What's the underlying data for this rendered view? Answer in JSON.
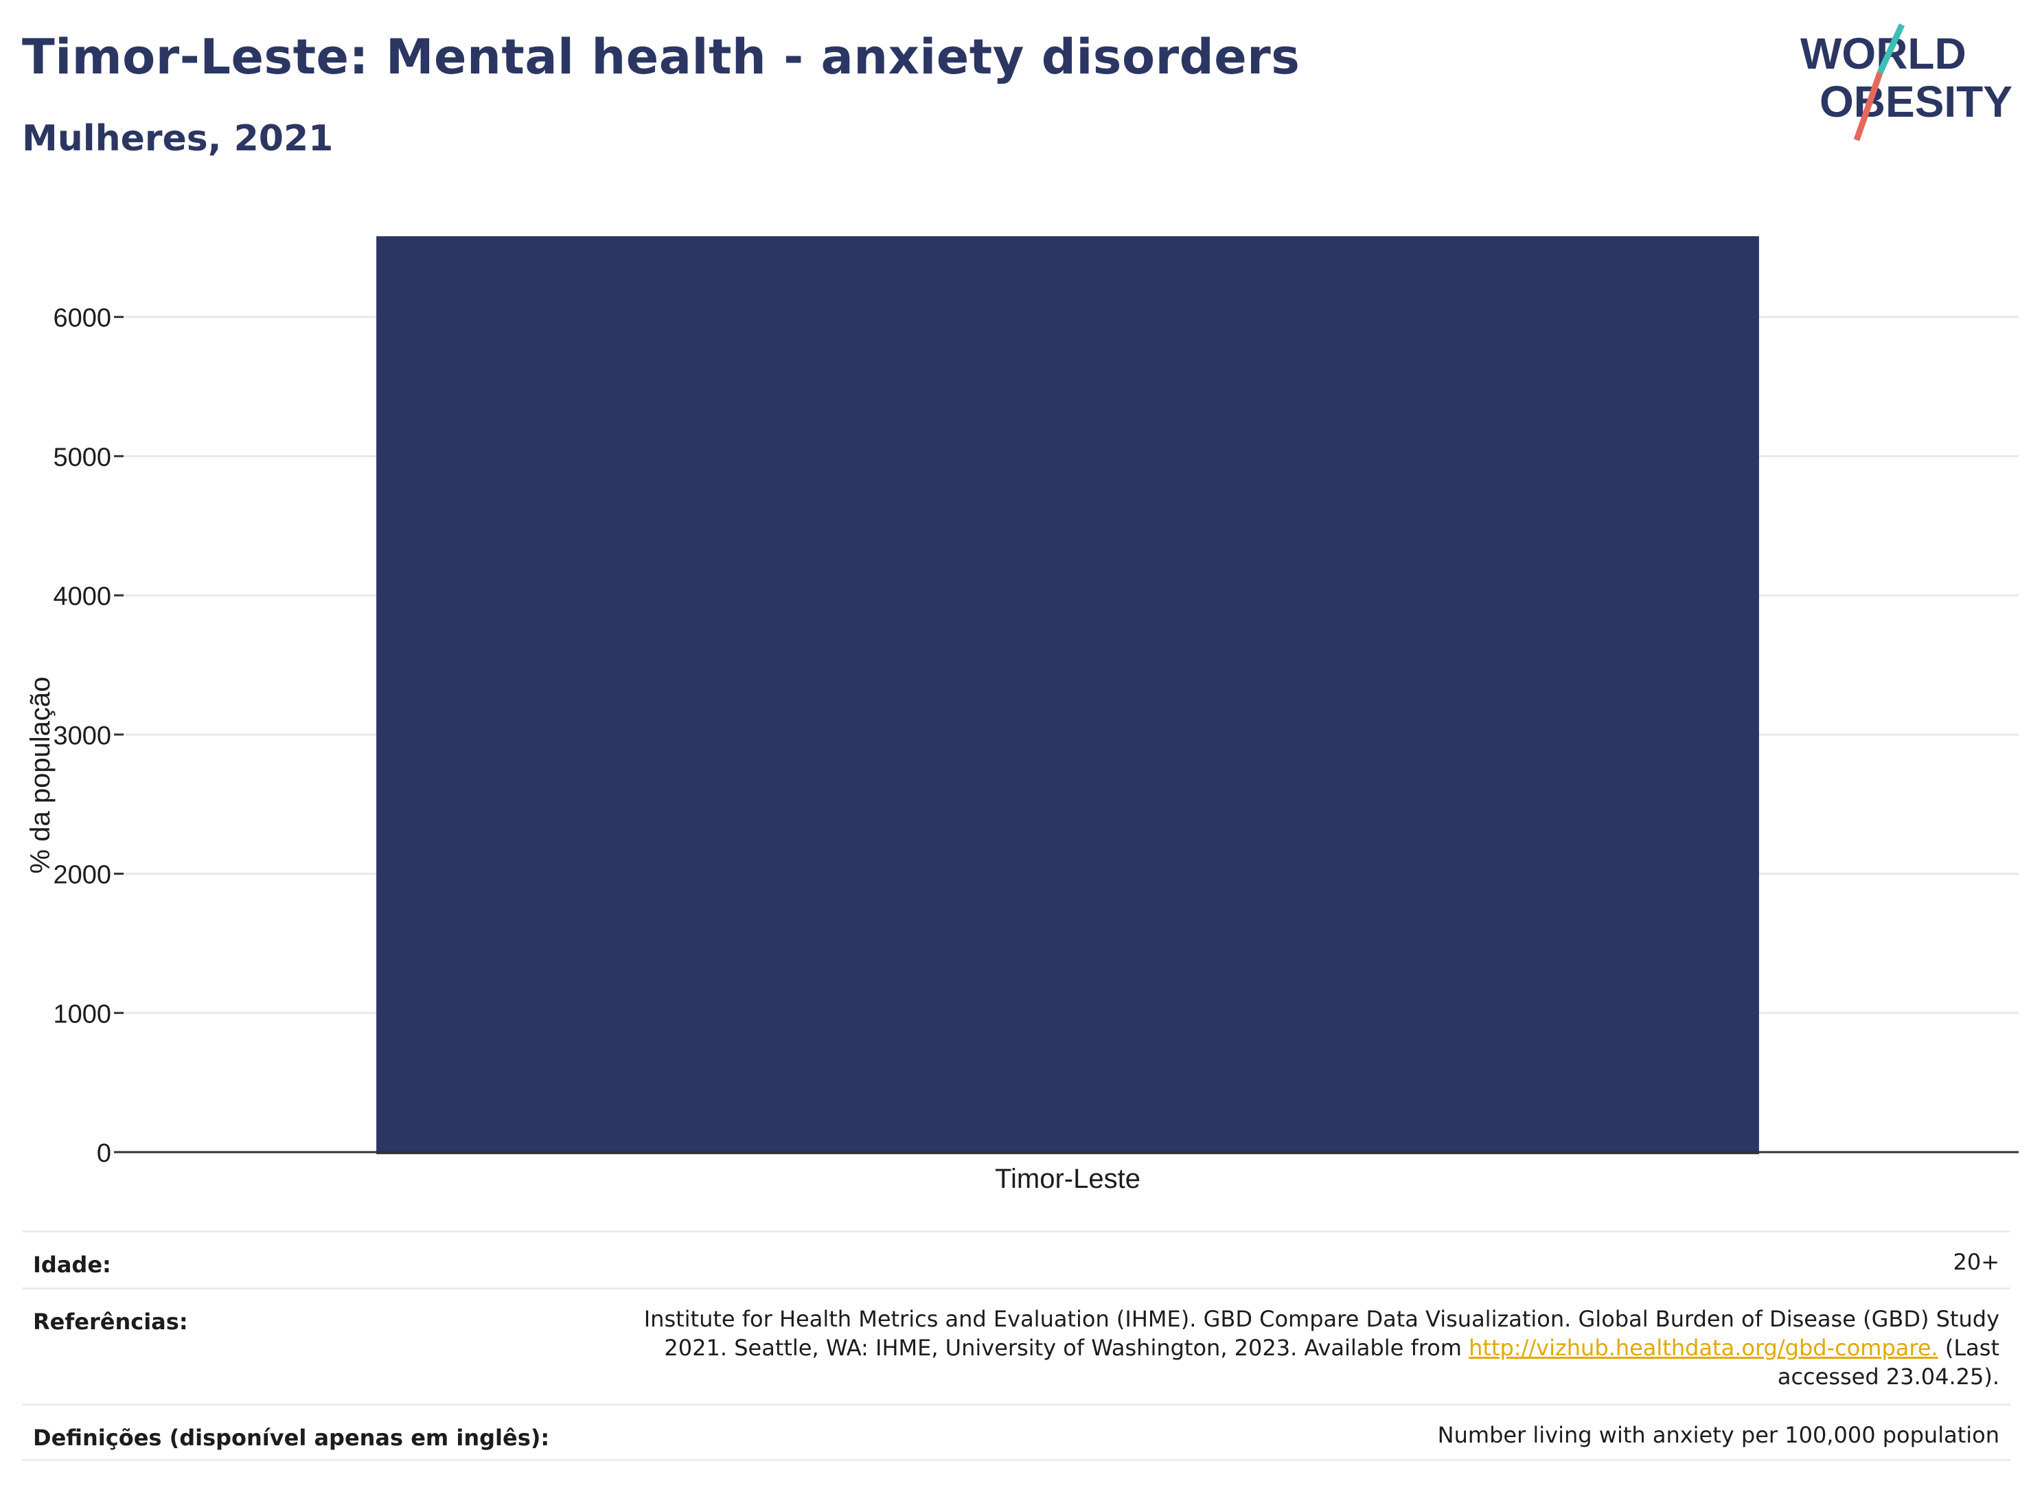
{
  "header": {
    "title": "Timor-Leste: Mental health - anxiety disorders",
    "subtitle": "Mulheres, 2021"
  },
  "logo": {
    "line1": "WORLD",
    "line2": "OBESITY",
    "colors": {
      "text": "#2b3663",
      "slash_top": "#3bbfb7",
      "slash_bottom": "#e5695a"
    }
  },
  "chart_data": {
    "type": "bar",
    "categories": [
      "Timor-Leste"
    ],
    "values": [
      6580
    ],
    "title": "",
    "xlabel": "",
    "ylabel": "% da população",
    "ylim": [
      0,
      6600
    ],
    "yticks": [
      0,
      1000,
      2000,
      3000,
      4000,
      5000,
      6000
    ],
    "grid": true,
    "bar_color": "#2b3663"
  },
  "info": {
    "age_label": "Idade:",
    "age_value": "20+",
    "ref_label": "Referências:",
    "ref_text_1": "Institute for Health Metrics and Evaluation (IHME). GBD Compare Data Visualization. Global Burden of Disease (GBD) Study 2021. Seattle, WA: IHME, University of Washington, 2023. Available from ",
    "ref_link": "http://vizhub.healthdata.org/gbd-compare.",
    "ref_text_2": " (Last accessed 23.04.25).",
    "def_label": "Definições (disponível apenas em inglês):",
    "def_value": "Number living with anxiety per 100,000 population"
  }
}
